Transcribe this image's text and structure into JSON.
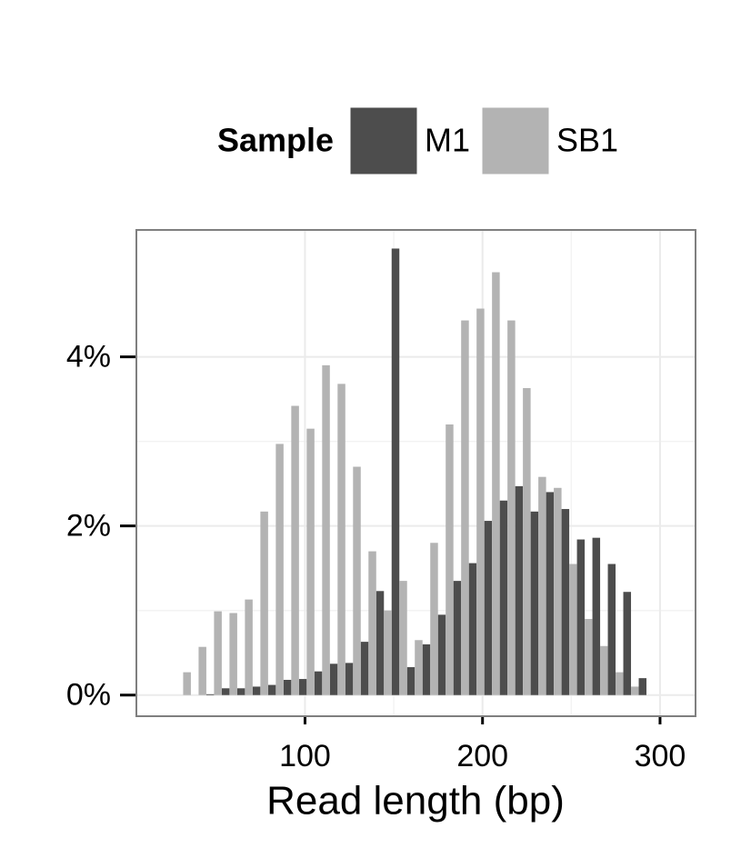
{
  "chart_data": {
    "type": "histogram",
    "x_label": "Read length (bp)",
    "legend_title": "Sample",
    "legend_position": "top",
    "grid": true,
    "bins": [
      27,
      35.7,
      44.4,
      53.1,
      61.8,
      70.5,
      79.2,
      87.9,
      96.6,
      105.3,
      114,
      122.7,
      131.4,
      140.1,
      148.8,
      157.5,
      166.2,
      174.9,
      183.6,
      192.3,
      201,
      209.7,
      218.4,
      227.1,
      235.8,
      244.5,
      253.2,
      261.9,
      270.6,
      279.3,
      288,
      296.7
    ],
    "series": [
      {
        "name": "M1",
        "color": "#4d4d4d",
        "values": [
          0,
          0,
          0.01,
          0.08,
          0.08,
          0.1,
          0.12,
          0.18,
          0.19,
          0.28,
          0.37,
          0.38,
          0.63,
          1.23,
          5.28,
          0.33,
          0.6,
          0.95,
          1.35,
          1.56,
          2.06,
          2.3,
          2.47,
          2.17,
          2.4,
          2.2,
          1.84,
          1.86,
          1.55,
          1.22,
          0.2
        ]
      },
      {
        "name": "SB1",
        "color": "#b3b3b3",
        "values": [
          0.27,
          0.57,
          0.99,
          0.97,
          1.13,
          2.17,
          2.97,
          3.42,
          3.15,
          3.9,
          3.68,
          2.7,
          1.7,
          1.0,
          1.35,
          0.65,
          1.8,
          3.2,
          4.43,
          4.57,
          5.0,
          4.43,
          3.63,
          2.58,
          2.45,
          1.55,
          0.9,
          0.58,
          0.27,
          0.1,
          0
        ]
      }
    ],
    "xlim": [
      5,
      320
    ],
    "xticks": [
      100,
      200,
      300
    ],
    "ylim": [
      -0.25,
      5.5
    ],
    "yticks": [
      {
        "value": 0,
        "label": "0%"
      },
      {
        "value": 2,
        "label": "2%"
      },
      {
        "value": 4,
        "label": "4%"
      }
    ]
  }
}
